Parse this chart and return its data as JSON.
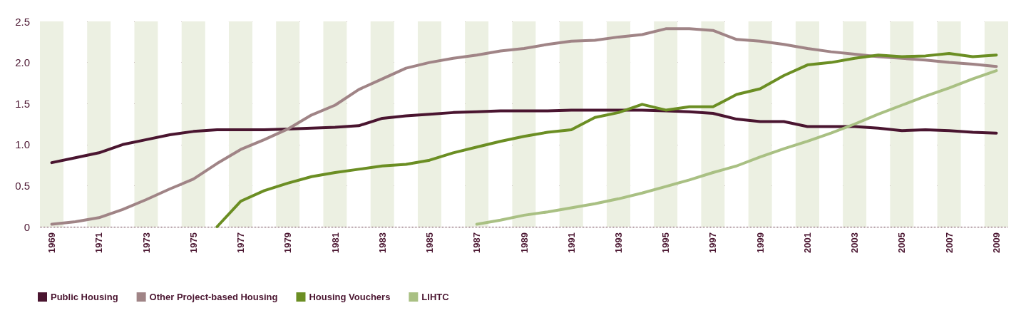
{
  "chart_data": {
    "type": "line",
    "categories": [
      "1969",
      null,
      "1971",
      null,
      "1973",
      null,
      "1975",
      null,
      "1977",
      null,
      "1979",
      null,
      "1981",
      null,
      "1983",
      null,
      "1985",
      null,
      "1987",
      null,
      "1989",
      null,
      "1991",
      null,
      "1993",
      null,
      "1995",
      null,
      "1997",
      null,
      "1999",
      null,
      "2001",
      null,
      "2003",
      null,
      "2005",
      null,
      "2007",
      null,
      "2009"
    ],
    "series": [
      {
        "name": "Public Housing",
        "color": "#4a1530",
        "values": [
          0.78,
          0.84,
          0.9,
          1.0,
          1.06,
          1.12,
          1.16,
          1.18,
          1.18,
          1.18,
          1.19,
          1.2,
          1.21,
          1.23,
          1.32,
          1.35,
          1.37,
          1.39,
          1.4,
          1.41,
          1.41,
          1.41,
          1.42,
          1.42,
          1.42,
          1.42,
          1.41,
          1.4,
          1.38,
          1.31,
          1.28,
          1.28,
          1.22,
          1.22,
          1.22,
          1.2,
          1.17,
          1.18,
          1.17,
          1.15,
          1.14
        ]
      },
      {
        "name": "Other Project-based Housing",
        "color": "#a08486",
        "values": [
          0.03,
          0.06,
          0.11,
          0.21,
          0.33,
          0.46,
          0.58,
          0.77,
          0.94,
          1.06,
          1.19,
          1.36,
          1.48,
          1.67,
          1.8,
          1.93,
          2.0,
          2.05,
          2.09,
          2.14,
          2.17,
          2.22,
          2.26,
          2.27,
          2.31,
          2.34,
          2.41,
          2.41,
          2.39,
          2.28,
          2.26,
          2.22,
          2.17,
          2.13,
          2.1,
          2.07,
          2.05,
          2.03,
          2.0,
          1.98,
          1.95
        ]
      },
      {
        "name": "Housing Vouchers",
        "color": "#6b8e23",
        "values": [
          null,
          null,
          null,
          null,
          null,
          null,
          null,
          0,
          0.31,
          0.44,
          0.53,
          0.61,
          0.66,
          0.7,
          0.74,
          0.76,
          0.81,
          0.9,
          0.97,
          1.04,
          1.1,
          1.15,
          1.18,
          1.33,
          1.39,
          1.49,
          1.42,
          1.46,
          1.46,
          1.61,
          1.68,
          1.84,
          1.97,
          2.0,
          2.05,
          2.09,
          2.07,
          2.08,
          2.11,
          2.07,
          2.09
        ]
      },
      {
        "name": "LIHTC",
        "color": "#a9c083",
        "values": [
          null,
          null,
          null,
          null,
          null,
          null,
          null,
          null,
          null,
          null,
          null,
          null,
          null,
          null,
          null,
          null,
          null,
          null,
          0.03,
          0.08,
          0.14,
          0.18,
          0.23,
          0.28,
          0.34,
          0.41,
          0.49,
          0.57,
          0.66,
          0.74,
          0.85,
          0.95,
          1.04,
          1.14,
          1.25,
          1.37,
          1.48,
          1.59,
          1.69,
          1.8,
          1.9
        ]
      }
    ],
    "ylim": [
      0,
      2.5
    ],
    "yticks": [
      0,
      0.5,
      {
        "value": 1,
        "label": "1.0"
      },
      1.5,
      {
        "value": 2,
        "label": "2.0"
      },
      2.5
    ],
    "grid": "y",
    "legend": "bottom left",
    "marker": "none",
    "line_style": "solid"
  }
}
